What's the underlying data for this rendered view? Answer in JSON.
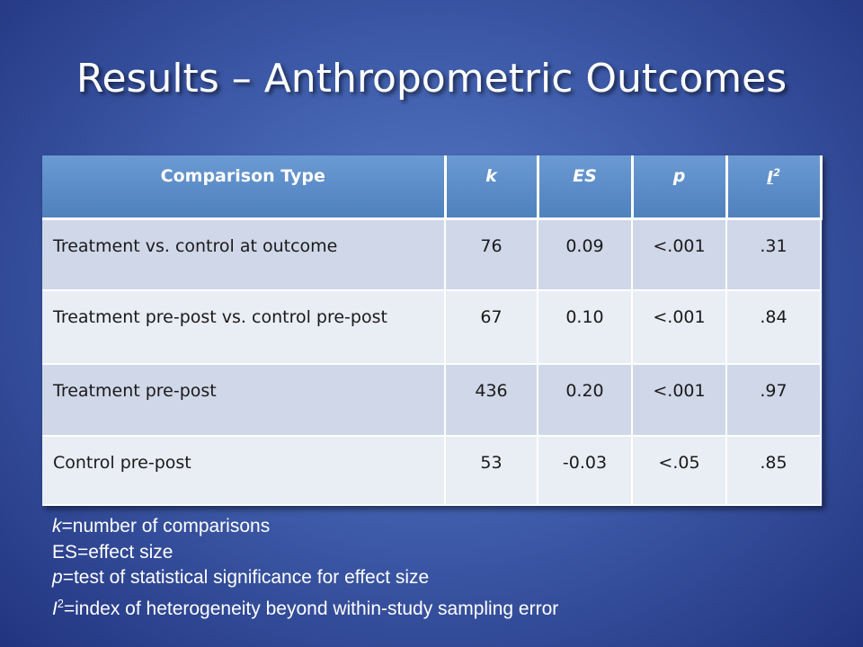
{
  "title": "Results – Anthropometric Outcomes",
  "table": {
    "header": [
      {
        "text": "Comparison Type"
      },
      {
        "text": "k"
      },
      {
        "text": "ES"
      },
      {
        "text": "p"
      },
      {
        "text": "I",
        "sup": "2"
      }
    ],
    "rows": [
      [
        "Treatment vs. control at outcome",
        "76",
        "0.09",
        "<.001",
        ".31"
      ],
      [
        "Treatment pre-post vs. control pre-post",
        "67",
        "0.10",
        "<.001",
        ".84"
      ],
      [
        "Treatment pre-post",
        "436",
        "0.20",
        "<.001",
        ".97"
      ],
      [
        "Control pre-post",
        "53",
        "-0.03",
        "<.05",
        ".85"
      ]
    ]
  },
  "notes": [
    {
      "term": "k",
      "text": "=number of comparisons"
    },
    {
      "term": "",
      "text": "ES=effect size"
    },
    {
      "term": "p",
      "text": "=test of statistical significance for effect size"
    },
    {
      "term": "I",
      "sup": "2",
      "text": "=index of heterogeneity beyond within-study sampling error"
    }
  ]
}
